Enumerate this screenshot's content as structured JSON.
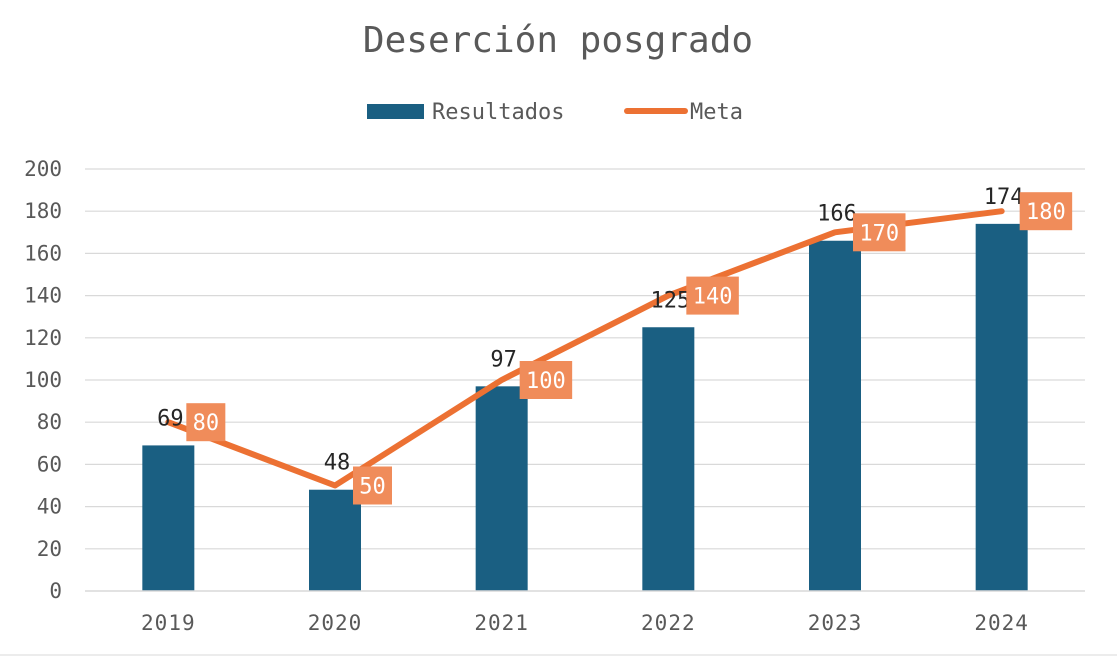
{
  "chart_data": {
    "type": "bar",
    "title": "Deserción posgrado",
    "categories": [
      "2019",
      "2020",
      "2021",
      "2022",
      "2023",
      "2024"
    ],
    "series": [
      {
        "name": "Resultados",
        "type": "bar",
        "color": "#1a5f82",
        "values": [
          69,
          48,
          97,
          125,
          166,
          174
        ]
      },
      {
        "name": "Meta",
        "type": "line",
        "color": "#ec7133",
        "values": [
          80,
          50,
          100,
          140,
          170,
          180
        ]
      }
    ],
    "y_ticks": [
      "0",
      "20",
      "40",
      "60",
      "80",
      "100",
      "120",
      "140",
      "160",
      "180",
      "200"
    ],
    "ylim": [
      0,
      200
    ],
    "grid": true,
    "legend_position": "top",
    "data_labels": true,
    "line_label_bg": "#f08c5a"
  }
}
